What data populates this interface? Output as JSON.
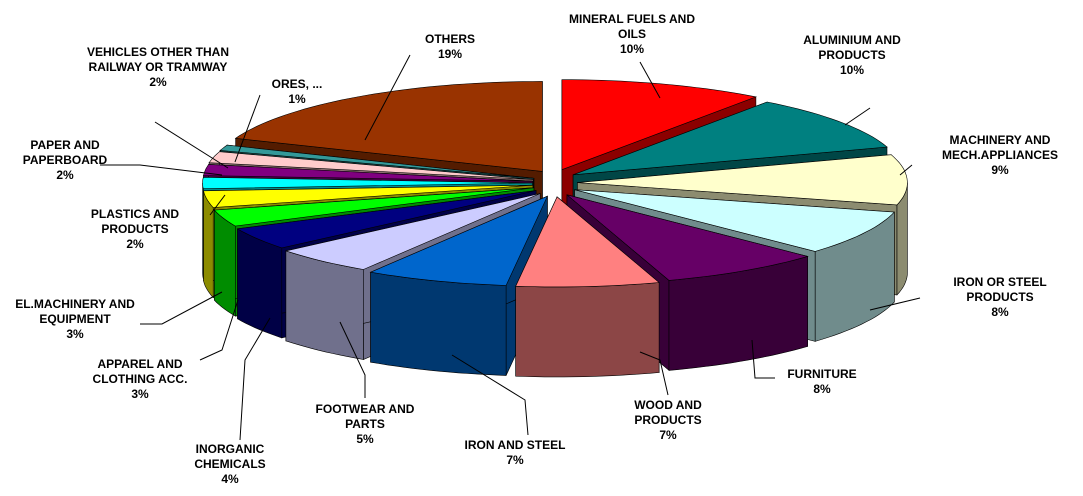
{
  "chart_data": {
    "type": "pie",
    "categories": [
      "MINERAL FUELS AND OILS",
      "ALUMINIUM AND PRODUCTS",
      "MACHINERY AND MECH.APPLIANCES",
      "IRON OR STEEL PRODUCTS",
      "FURNITURE",
      "WOOD AND PRODUCTS",
      "IRON AND STEEL",
      "FOOTWEAR AND PARTS",
      "INORGANIC CHEMICALS",
      "APPAREL AND CLOTHING ACC.",
      "EL.MACHINERY AND EQUIPMENT",
      "PLASTICS AND PRODUCTS",
      "PAPER AND PAPERBOARD",
      "VEHICLES OTHER THAN RAILWAY OR TRAMWAY",
      "ORES, ...",
      "OTHERS"
    ],
    "values": [
      10,
      10,
      9,
      8,
      8,
      7,
      7,
      5,
      4,
      3,
      3,
      2,
      2,
      2,
      1,
      19
    ],
    "value_labels": [
      "10%",
      "10%",
      "9%",
      "8%",
      "8%",
      "7%",
      "7%",
      "5%",
      "4%",
      "3%",
      "3%",
      "2%",
      "2%",
      "2%",
      "1%",
      "19%"
    ],
    "colors": [
      "#ff0000",
      "#008080",
      "#ffffcc",
      "#ccffff",
      "#660066",
      "#ff8080",
      "#0066cc",
      "#ccccff",
      "#000080",
      "#00ff00",
      "#ffff00",
      "#00ffff",
      "#800080",
      "#ffcccc",
      "#339999",
      "#993300"
    ]
  }
}
